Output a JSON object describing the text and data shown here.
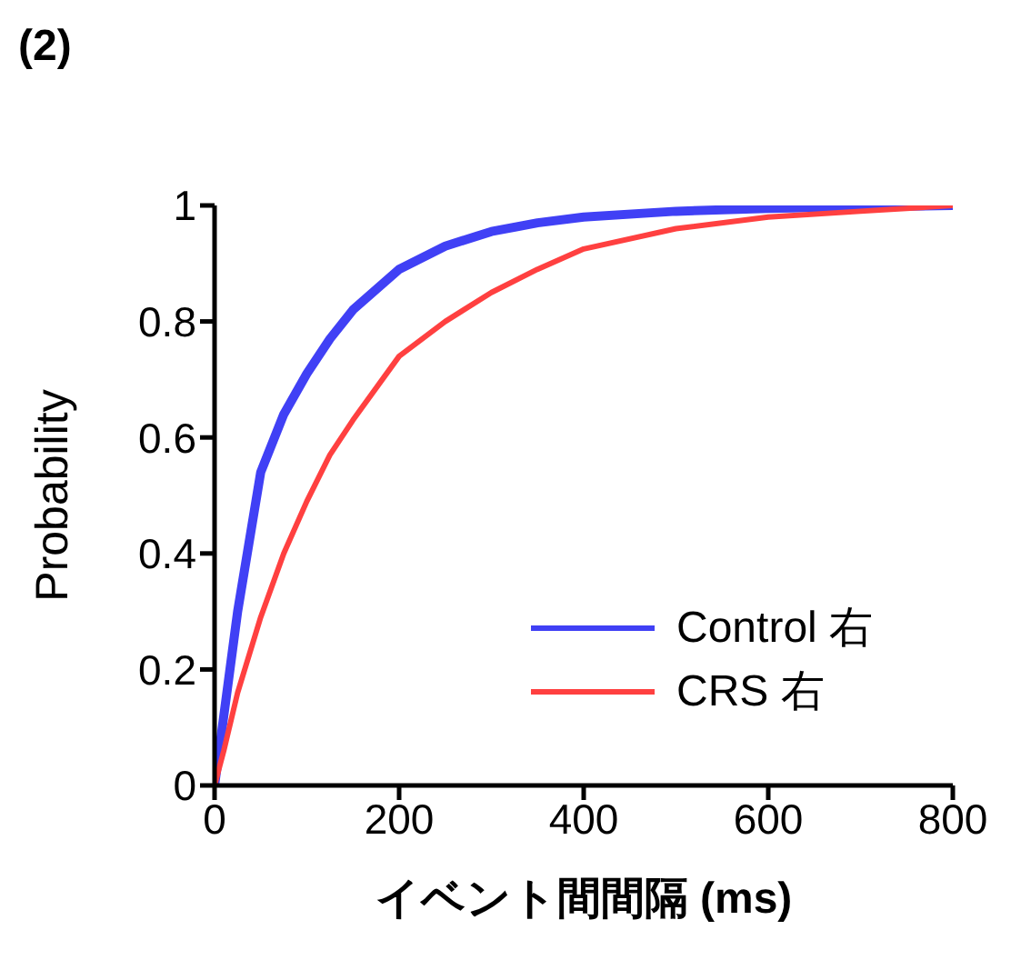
{
  "chart_data": {
    "type": "line",
    "title": "(2)",
    "xlabel": "イベント間間隔 (ms)",
    "ylabel": "Probability",
    "x": [
      0,
      10,
      25,
      50,
      75,
      100,
      125,
      150,
      200,
      250,
      300,
      350,
      400,
      500,
      600,
      700,
      800
    ],
    "series": [
      {
        "name": "Control 右",
        "color": "#4040f5",
        "values": [
          0,
          0.12,
          0.3,
          0.54,
          0.64,
          0.71,
          0.77,
          0.82,
          0.89,
          0.93,
          0.955,
          0.97,
          0.98,
          0.99,
          0.995,
          0.998,
          1
        ]
      },
      {
        "name": "CRS 右",
        "color": "#ff4040",
        "values": [
          0,
          0.06,
          0.16,
          0.29,
          0.4,
          0.49,
          0.57,
          0.63,
          0.74,
          0.8,
          0.85,
          0.89,
          0.925,
          0.96,
          0.98,
          0.99,
          1
        ]
      }
    ],
    "xlim": [
      0,
      800
    ],
    "xticks": [
      0,
      200,
      400,
      600,
      800
    ],
    "ylim": [
      0,
      1
    ],
    "yticks": [
      0,
      0.2,
      0.4,
      0.6,
      0.8,
      1
    ],
    "legend": "bottom right",
    "grid": false,
    "marker": "none",
    "line_style": "solid"
  }
}
